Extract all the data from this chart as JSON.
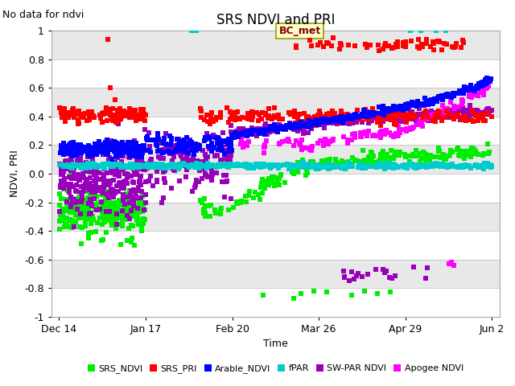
{
  "title": "SRS NDVI and PRI",
  "top_left_text": "No data for ndvi",
  "ylabel": "NDVI, PRI",
  "xlabel": "Time",
  "ylim": [
    -1.0,
    1.0
  ],
  "yticks": [
    -1.0,
    -0.8,
    -0.6,
    -0.4,
    -0.2,
    0.0,
    0.2,
    0.4,
    0.6,
    0.8,
    1.0
  ],
  "xtick_labels": [
    "Dec 14",
    "Jan 17",
    "Feb 20",
    "Mar 26",
    "Apr 29",
    "Jun 2"
  ],
  "xtick_positions": [
    0,
    34,
    68,
    102,
    136,
    170
  ],
  "annotation": "BC_met",
  "bg_color": "#ffffff",
  "plot_bg_color": "#ffffff",
  "band_colors": [
    "#ffffff",
    "#e8e8e8"
  ],
  "colors": {
    "SRS_NDVI": "#00ee00",
    "SRS_PRI": "#ff0000",
    "Arable_NDVI": "#0000ff",
    "fPAR": "#00cccc",
    "SW_PAR_NDVI": "#9900bb",
    "Apogee_NDVI": "#ff00ff"
  }
}
